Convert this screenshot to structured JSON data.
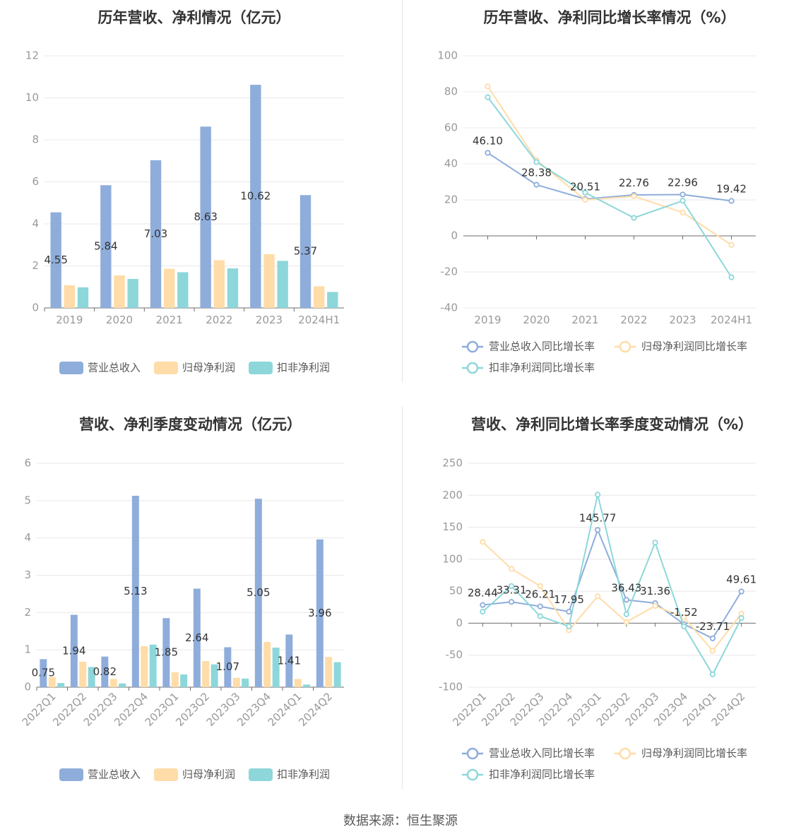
{
  "colors": {
    "revenue": "#8eaddb",
    "net_profit": "#ffdca8",
    "deducted_profit": "#8dd7da",
    "title": "#333333",
    "axis_label": "#999999",
    "grid": "#e8e8e8",
    "data_label": "#333333"
  },
  "chart_data": [
    {
      "type": "bar",
      "title": "历年营收、净利情况（亿元）",
      "categories": [
        "2019",
        "2020",
        "2021",
        "2022",
        "2023",
        "2024H1"
      ],
      "ylim": [
        0,
        12
      ],
      "yticks": [
        "0",
        "2",
        "4",
        "6",
        "8",
        "10",
        "12"
      ],
      "grid": true,
      "legend_position": "bottom",
      "labeled_series": 0,
      "series": [
        {
          "name": "营业总收入",
          "values": [
            4.55,
            5.84,
            7.03,
            8.63,
            10.62,
            5.37
          ],
          "labels": [
            "4.55",
            "5.84",
            "7.03",
            "8.63",
            "10.62",
            "5.37"
          ]
        },
        {
          "name": "归母净利润",
          "values": [
            1.08,
            1.55,
            1.86,
            2.27,
            2.56,
            1.03
          ]
        },
        {
          "name": "扣非净利润",
          "values": [
            0.98,
            1.38,
            1.7,
            1.88,
            2.24,
            0.76
          ]
        }
      ]
    },
    {
      "type": "line",
      "title": "历年营收、净利同比增长率情况（%）",
      "categories": [
        "2019",
        "2020",
        "2021",
        "2022",
        "2023",
        "2024H1"
      ],
      "ylim": [
        -40,
        100
      ],
      "yticks": [
        "-40",
        "-20",
        "0",
        "20",
        "40",
        "60",
        "80",
        "100"
      ],
      "grid": true,
      "legend_position": "bottom",
      "labeled_series": 0,
      "series": [
        {
          "name": "营业总收入同比增长率",
          "values": [
            46.1,
            28.38,
            20.51,
            22.76,
            22.96,
            19.42
          ],
          "labels": [
            "46.10",
            "28.38",
            "20.51",
            "22.76",
            "22.96",
            "19.42"
          ]
        },
        {
          "name": "归母净利润同比增长率",
          "values": [
            83.0,
            42.0,
            20.0,
            22.0,
            13.0,
            -5.0
          ]
        },
        {
          "name": "扣非净利润同比增长率",
          "values": [
            77.0,
            41.0,
            24.0,
            10.0,
            19.5,
            -23.0
          ]
        }
      ]
    },
    {
      "type": "bar",
      "title": "营收、净利季度变动情况（亿元）",
      "categories": [
        "2022Q1",
        "2022Q2",
        "2022Q3",
        "2022Q4",
        "2023Q1",
        "2023Q2",
        "2023Q3",
        "2023Q4",
        "2024Q1",
        "2024Q2"
      ],
      "ylim": [
        0,
        6
      ],
      "yticks": [
        "0",
        "1",
        "2",
        "3",
        "4",
        "5",
        "6"
      ],
      "grid": true,
      "legend_position": "bottom",
      "rotated_xlabels": true,
      "labeled_series": 0,
      "series": [
        {
          "name": "营业总收入",
          "values": [
            0.75,
            1.94,
            0.82,
            5.13,
            1.85,
            2.64,
            1.07,
            5.05,
            1.41,
            3.96
          ],
          "labels": [
            "0.75",
            "1.94",
            "0.82",
            "5.13",
            "1.85",
            "2.64",
            "1.07",
            "5.05",
            "1.41",
            "3.96"
          ]
        },
        {
          "name": "归母净利润",
          "values": [
            0.27,
            0.68,
            0.22,
            1.1,
            0.4,
            0.7,
            0.25,
            1.21,
            0.22,
            0.81
          ]
        },
        {
          "name": "扣非净利润",
          "values": [
            0.11,
            0.54,
            0.1,
            1.14,
            0.34,
            0.61,
            0.23,
            1.06,
            0.07,
            0.67
          ]
        }
      ]
    },
    {
      "type": "line",
      "title": "营收、净利同比增长率季度变动情况（%）",
      "categories": [
        "2022Q1",
        "2022Q2",
        "2022Q3",
        "2022Q4",
        "2023Q1",
        "2023Q2",
        "2023Q3",
        "2023Q4",
        "2024Q1",
        "2024Q2"
      ],
      "ylim": [
        -100,
        250
      ],
      "yticks": [
        "-100",
        "-50",
        "0",
        "50",
        "100",
        "150",
        "200",
        "250"
      ],
      "grid": true,
      "legend_position": "bottom",
      "rotated_xlabels": true,
      "labeled_series": 0,
      "series": [
        {
          "name": "营业总收入同比增长率",
          "values": [
            28.44,
            33.31,
            26.21,
            17.95,
            145.77,
            36.43,
            31.36,
            -1.52,
            -23.71,
            49.61
          ],
          "labels": [
            "28.44",
            "33.31",
            "26.21",
            "17.95",
            "145.77",
            "36.43",
            "31.36",
            "-1.52",
            "-23.71",
            "49.61"
          ]
        },
        {
          "name": "归母净利润同比增长率",
          "values": [
            127,
            85,
            58,
            -11,
            42,
            2,
            27,
            9,
            -43,
            15
          ]
        },
        {
          "name": "扣非净利润同比增长率",
          "values": [
            18,
            58,
            11,
            -5,
            201,
            14,
            126,
            -5,
            -80,
            8
          ]
        }
      ]
    }
  ],
  "footer": {
    "source": "数据来源：恒生聚源"
  }
}
